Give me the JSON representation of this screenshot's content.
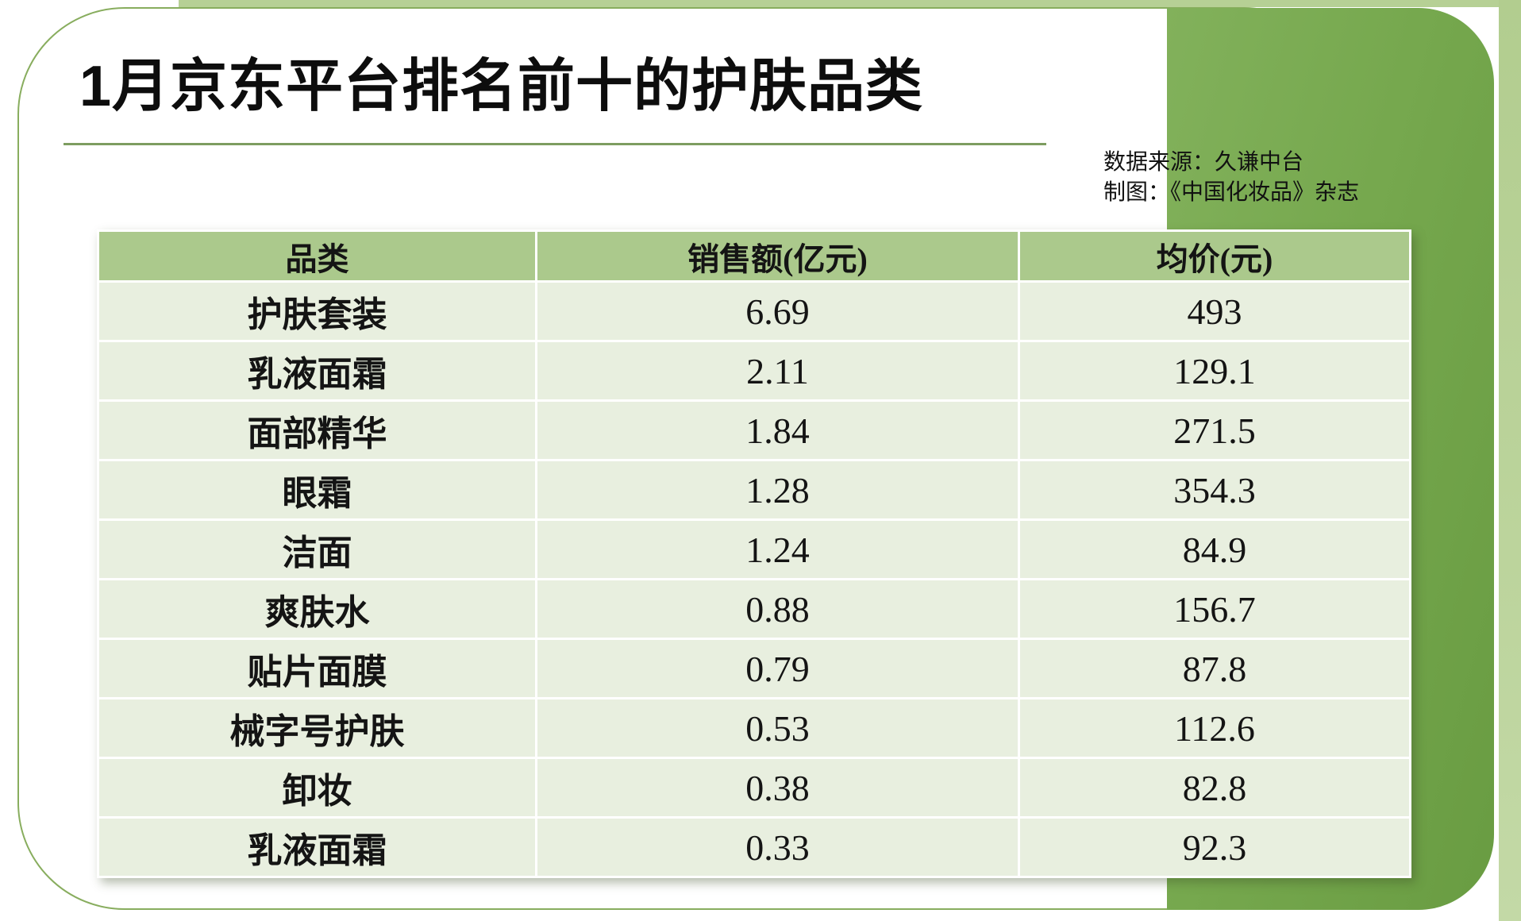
{
  "page": {
    "title": "1月京东平台排名前十的护肤品类",
    "source_line1": "数据来源：久谦中台",
    "source_line2": "制图：《中国化妆品》杂志"
  },
  "colors": {
    "band_green": "#76a84e",
    "light_green_strip": "#b6d095",
    "outline_green": "#88ad5e",
    "header_row_green": "#abc98c",
    "body_row_green": "#e8efdf",
    "underline_green": "#7d9d60",
    "text": "#0d0d0d"
  },
  "chart_data": {
    "type": "table",
    "title": "1月京东平台排名前十的护肤品类",
    "columns": [
      "品类",
      "销售额(亿元)",
      "均价(元)"
    ],
    "rows": [
      [
        "护肤套装",
        "6.69",
        "493"
      ],
      [
        "乳液面霜",
        "2.11",
        "129.1"
      ],
      [
        "面部精华",
        "1.84",
        "271.5"
      ],
      [
        "眼霜",
        "1.28",
        "354.3"
      ],
      [
        "洁面",
        "1.24",
        "84.9"
      ],
      [
        "爽肤水",
        "0.88",
        "156.7"
      ],
      [
        "贴片面膜",
        "0.79",
        "87.8"
      ],
      [
        "械字号护肤",
        "0.53",
        "112.6"
      ],
      [
        "卸妆",
        "0.38",
        "82.8"
      ],
      [
        "乳液面霜",
        "0.33",
        "92.3"
      ]
    ],
    "source": "数据来源：久谦中台",
    "credit": "制图：《中国化妆品》杂志",
    "legend_position": "none",
    "grid": "banded-rows"
  }
}
